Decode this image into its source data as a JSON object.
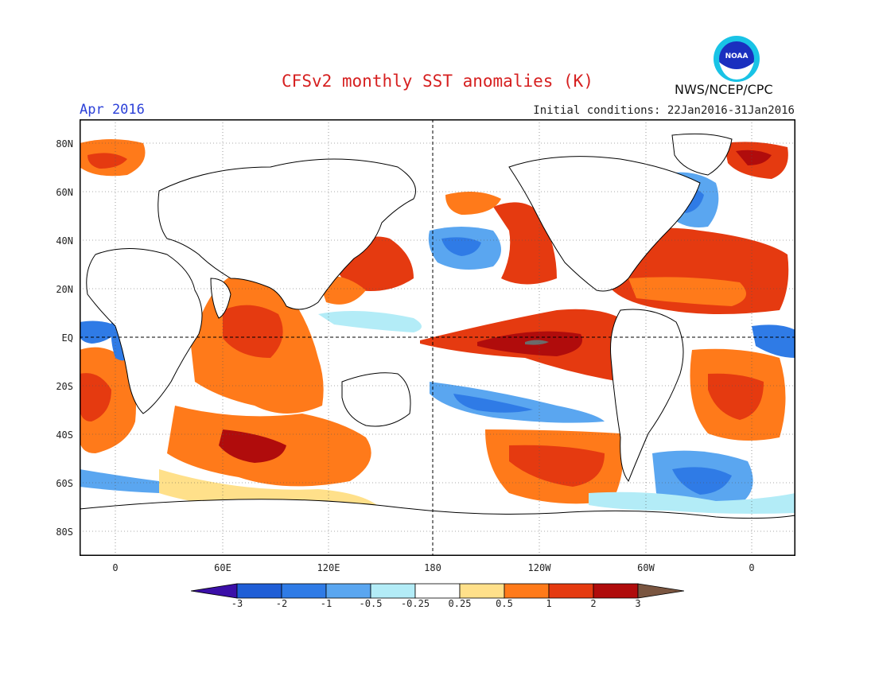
{
  "header": {
    "title": "CFSv2 monthly SST anomalies (K)",
    "month": "Apr 2016",
    "initial_conditions": "Initial conditions: 22Jan2016-31Jan2016",
    "agency": "NWS/NCEP/CPC",
    "logo_text": "NOAA"
  },
  "axes": {
    "lat_labels": [
      "80N",
      "60N",
      "40N",
      "20N",
      "EQ",
      "20S",
      "40S",
      "60S",
      "80S"
    ],
    "lon_labels": [
      "0",
      "60E",
      "120E",
      "180",
      "120W",
      "60W",
      "0"
    ]
  },
  "colorbar": {
    "labels": [
      "-3",
      "-2",
      "-1",
      "-0.5",
      "-0.25",
      "0.25",
      "0.5",
      "1",
      "2",
      "3"
    ],
    "colors": [
      "#3b0fa8",
      "#1f5ed6",
      "#2f7be6",
      "#5aa6f0",
      "#b3ecf7",
      "#ffffff",
      "#ffe08a",
      "#ff7a1a",
      "#e53a10",
      "#b00c0c",
      "#7a5540"
    ]
  },
  "palette": {
    "strong_positive": "#b00c0c",
    "positive": "#e53a10",
    "moderate_positive": "#ff7a1a",
    "weak_positive": "#ffe08a",
    "weak_negative": "#b3ecf7",
    "negative": "#5aa6f0",
    "strong_negative": "#1f5ed6",
    "extreme": "#6b6b6b"
  }
}
